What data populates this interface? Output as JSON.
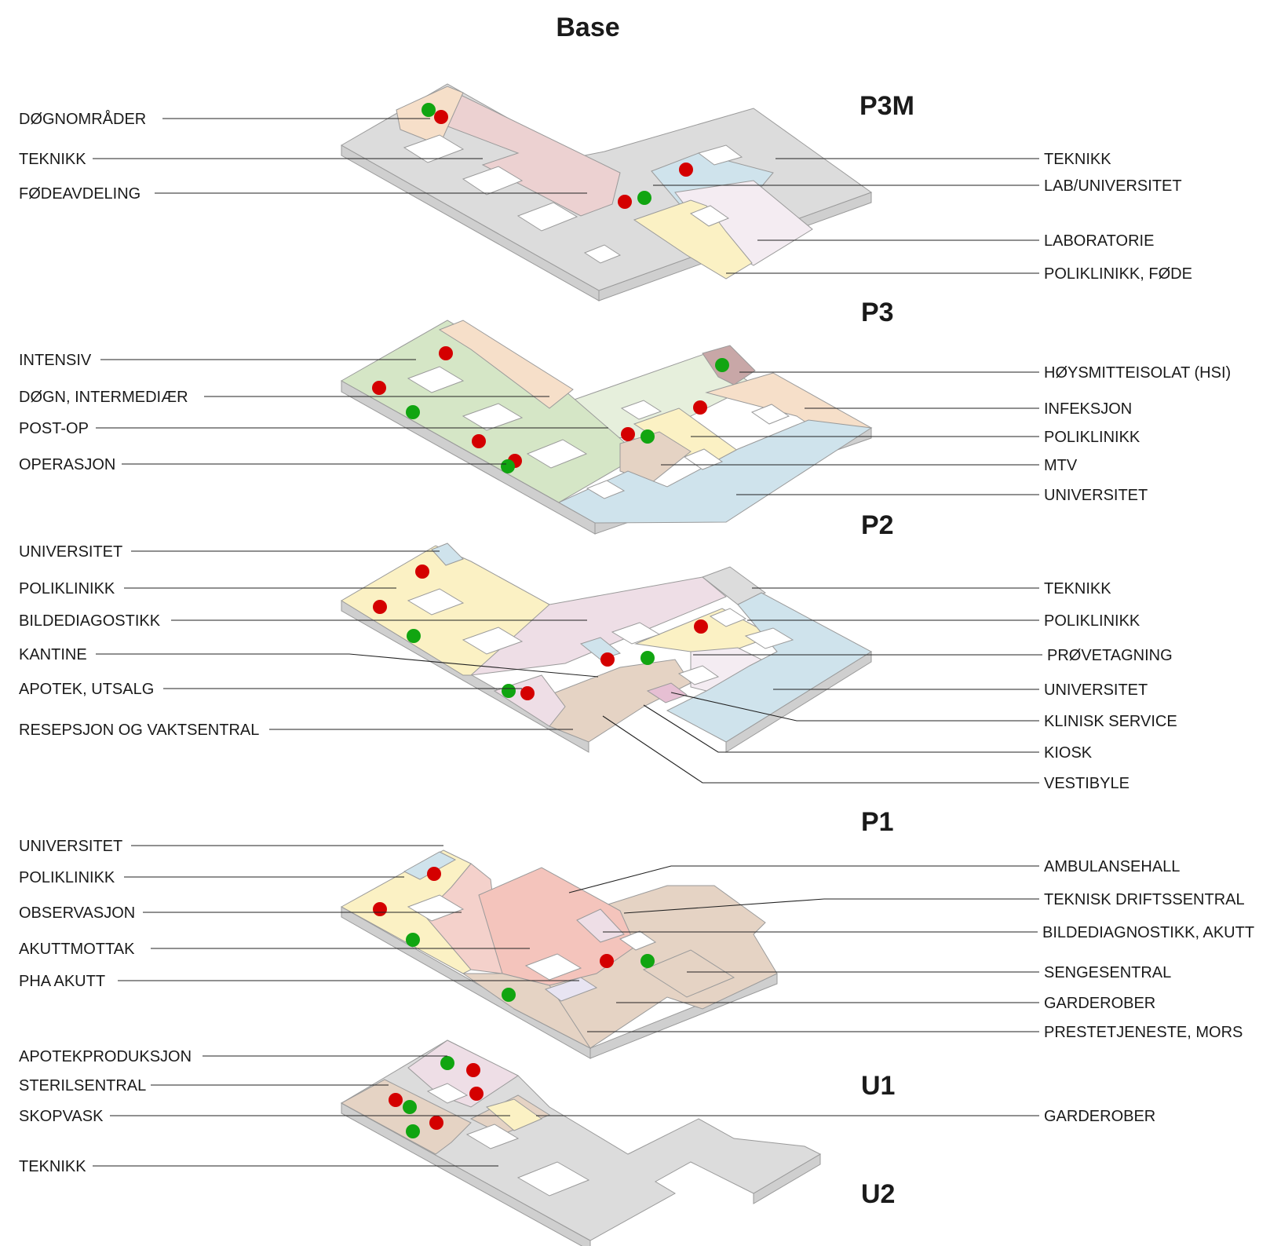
{
  "title": "Base",
  "colors": {
    "gray": "#dcdcdc",
    "pink": "#ecd1d1",
    "peach": "#f6dfc9",
    "lightblue": "#cfe3ec",
    "lavender": "#f4ecf2",
    "yellow": "#fbf1c4",
    "green": "#d5e6c6",
    "lightgreen": "#e6efdc",
    "mauve": "#c8a7a7",
    "tan": "#e5d3c4",
    "lightpink": "#eedee6",
    "salmon": "#f4c4bc",
    "rose": "#f4d1cb",
    "marker_red": "#d40000",
    "marker_green": "#11a511"
  },
  "floors": [
    {
      "id": "p3m",
      "name": "P3M",
      "left_labels": [
        "DØGNOMRÅDER",
        "TEKNIKK",
        "FØDEAVDELING"
      ],
      "right_labels": [
        "TEKNIKK",
        "LAB/UNIVERSITET",
        "LABORATORIE",
        "POLIKLINIKK, FØDE"
      ]
    },
    {
      "id": "p3",
      "name": "P3",
      "left_labels": [
        "INTENSIV",
        "DØGN, INTERMEDIÆR",
        "POST-OP",
        "OPERASJON"
      ],
      "right_labels": [
        "HØYSMITTEISOLAT (HSI)",
        "INFEKSJON",
        "POLIKLINIKK",
        "MTV",
        "UNIVERSITET"
      ]
    },
    {
      "id": "p2",
      "name": "P2",
      "left_labels": [
        "UNIVERSITET",
        "POLIKLINIKK",
        "BILDEDIAGOSTIKK",
        "KANTINE",
        "APOTEK, UTSALG",
        "RESEPSJON OG VAKTSENTRAL"
      ],
      "right_labels": [
        "TEKNIKK",
        "POLIKLINIKK",
        "PRØVETAGNING",
        "UNIVERSITET",
        "KLINISK SERVICE",
        "KIOSK",
        "VESTIBYLE"
      ]
    },
    {
      "id": "p1",
      "name": "P1",
      "left_labels": [
        "UNIVERSITET",
        "POLIKLINIKK",
        "OBSERVASJON",
        "AKUTTMOTTAK",
        "PHA AKUTT"
      ],
      "right_labels": [
        "AMBULANSEHALL",
        "TEKNISK DRIFTSSENTRAL",
        "BILDEDIAGNOSTIKK, AKUTT",
        "SENGESENTRAL",
        "GARDEROBER",
        "PRESTETJENESTE, MORS"
      ]
    },
    {
      "id": "u1",
      "name": "U1",
      "left_labels": [
        "APOTEKPRODUKSJON",
        "STERILSENTRAL",
        "SKOPVASK"
      ],
      "right_labels": [
        "GARDEROBER"
      ]
    },
    {
      "id": "u2",
      "name": "U2",
      "left_labels": [
        "TEKNIKK"
      ],
      "right_labels": []
    }
  ]
}
